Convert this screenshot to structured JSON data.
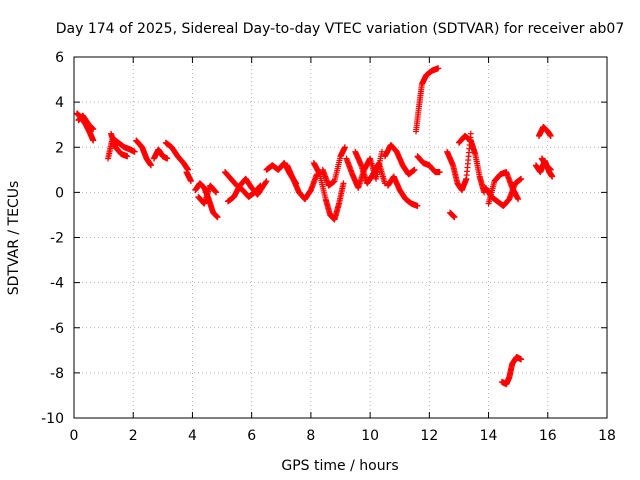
{
  "chart_data": {
    "type": "scatter",
    "title": "Day 174 of 2025, Sidereal Day-to-day VTEC variation (SDTVAR) for receiver ab07",
    "xlabel": "GPS time / hours",
    "ylabel": "SDTVAR / TECUs",
    "xlim": [
      0,
      18
    ],
    "ylim": [
      -10,
      6
    ],
    "xticks": [
      0,
      2,
      4,
      6,
      8,
      10,
      12,
      14,
      16,
      18
    ],
    "yticks": [
      -10,
      -8,
      -6,
      -4,
      -2,
      0,
      2,
      4,
      6
    ],
    "grid": true,
    "marker": "+",
    "color": "#ff0000",
    "series": [
      {
        "name": "ab07",
        "segments": [
          [
            [
              0.1,
              3.5
            ],
            [
              0.25,
              3.3
            ],
            [
              0.4,
              3.0
            ],
            [
              0.55,
              2.6
            ],
            [
              0.65,
              2.3
            ]
          ],
          [
            [
              0.15,
              3.2
            ],
            [
              0.3,
              3.4
            ],
            [
              0.5,
              3.0
            ],
            [
              0.65,
              2.8
            ]
          ],
          [
            [
              1.15,
              1.5
            ],
            [
              1.3,
              2.4
            ],
            [
              1.5,
              2.2
            ],
            [
              1.7,
              2.0
            ],
            [
              1.9,
              1.9
            ],
            [
              2.05,
              1.8
            ]
          ],
          [
            [
              1.25,
              2.6
            ],
            [
              1.4,
              2.0
            ],
            [
              1.6,
              1.7
            ],
            [
              1.8,
              1.6
            ]
          ],
          [
            [
              2.1,
              2.3
            ],
            [
              2.3,
              2.0
            ],
            [
              2.45,
              1.5
            ],
            [
              2.6,
              1.2
            ]
          ],
          [
            [
              2.7,
              1.5
            ],
            [
              2.85,
              1.9
            ],
            [
              3.0,
              1.6
            ],
            [
              3.15,
              1.5
            ]
          ],
          [
            [
              3.1,
              2.2
            ],
            [
              3.3,
              2.0
            ],
            [
              3.5,
              1.6
            ],
            [
              3.7,
              1.3
            ],
            [
              3.85,
              1.0
            ]
          ],
          [
            [
              3.8,
              0.9
            ],
            [
              3.95,
              0.5
            ]
          ],
          [
            [
              4.1,
              0.1
            ],
            [
              4.25,
              0.4
            ],
            [
              4.4,
              0.2
            ],
            [
              4.55,
              -0.3
            ],
            [
              4.7,
              -0.9
            ],
            [
              4.85,
              -1.1
            ]
          ],
          [
            [
              4.2,
              -0.2
            ],
            [
              4.4,
              -0.5
            ],
            [
              4.6,
              0.3
            ],
            [
              4.8,
              0.0
            ]
          ],
          [
            [
              5.1,
              0.9
            ],
            [
              5.3,
              0.6
            ],
            [
              5.5,
              0.3
            ],
            [
              5.7,
              0.1
            ],
            [
              5.9,
              -0.2
            ],
            [
              6.1,
              0.0
            ],
            [
              6.3,
              0.3
            ]
          ],
          [
            [
              5.2,
              -0.4
            ],
            [
              5.4,
              -0.2
            ],
            [
              5.6,
              0.3
            ],
            [
              5.8,
              0.6
            ],
            [
              6.0,
              0.2
            ],
            [
              6.2,
              -0.1
            ],
            [
              6.5,
              0.5
            ]
          ],
          [
            [
              6.5,
              1.0
            ],
            [
              6.7,
              1.2
            ],
            [
              6.9,
              1.0
            ],
            [
              7.1,
              1.3
            ],
            [
              7.3,
              0.8
            ],
            [
              7.5,
              0.4
            ]
          ],
          [
            [
              7.2,
              1.2
            ],
            [
              7.4,
              0.6
            ],
            [
              7.6,
              0.0
            ],
            [
              7.8,
              -0.3
            ],
            [
              8.0,
              0.1
            ],
            [
              8.2,
              0.8
            ]
          ],
          [
            [
              8.1,
              1.3
            ],
            [
              8.3,
              0.8
            ],
            [
              8.5,
              -0.3
            ],
            [
              8.65,
              -1.0
            ],
            [
              8.8,
              -1.2
            ],
            [
              8.95,
              -0.5
            ],
            [
              9.1,
              0.4
            ]
          ],
          [
            [
              8.4,
              1.0
            ],
            [
              8.6,
              0.3
            ],
            [
              8.8,
              0.5
            ],
            [
              9.0,
              1.6
            ],
            [
              9.15,
              2.0
            ]
          ],
          [
            [
              9.2,
              1.5
            ],
            [
              9.4,
              0.8
            ],
            [
              9.6,
              0.2
            ],
            [
              9.8,
              1.0
            ],
            [
              10.0,
              1.5
            ],
            [
              10.2,
              0.6
            ],
            [
              10.4,
              1.8
            ]
          ],
          [
            [
              9.5,
              1.8
            ],
            [
              9.7,
              1.2
            ],
            [
              9.9,
              0.4
            ],
            [
              10.1,
              0.8
            ],
            [
              10.3,
              1.3
            ],
            [
              10.5,
              0.4
            ]
          ],
          [
            [
              10.5,
              1.6
            ],
            [
              10.7,
              2.1
            ],
            [
              10.9,
              1.8
            ],
            [
              11.1,
              1.2
            ],
            [
              11.3,
              0.8
            ],
            [
              11.5,
              1.0
            ]
          ],
          [
            [
              10.6,
              0.3
            ],
            [
              10.8,
              0.7
            ],
            [
              11.0,
              0.1
            ],
            [
              11.2,
              -0.3
            ],
            [
              11.4,
              -0.5
            ],
            [
              11.6,
              -0.6
            ]
          ],
          [
            [
              11.6,
              1.6
            ],
            [
              11.8,
              1.3
            ],
            [
              12.0,
              1.2
            ],
            [
              12.2,
              0.9
            ],
            [
              12.35,
              0.9
            ]
          ],
          [
            [
              11.55,
              2.7
            ],
            [
              11.65,
              3.8
            ],
            [
              11.75,
              4.8
            ],
            [
              11.9,
              5.2
            ],
            [
              12.1,
              5.4
            ],
            [
              12.3,
              5.5
            ]
          ],
          [
            [
              12.6,
              1.8
            ],
            [
              12.8,
              1.2
            ],
            [
              12.95,
              0.4
            ],
            [
              13.1,
              0.1
            ],
            [
              13.25,
              0.6
            ],
            [
              13.4,
              2.6
            ]
          ],
          [
            [
              13.0,
              2.2
            ],
            [
              13.2,
              2.5
            ],
            [
              13.4,
              2.3
            ],
            [
              13.55,
              1.7
            ],
            [
              13.7,
              0.7
            ],
            [
              13.85,
              0.0
            ]
          ],
          [
            [
              12.7,
              -0.9
            ],
            [
              12.85,
              -1.1
            ]
          ],
          [
            [
              13.9,
              0.2
            ],
            [
              14.1,
              -0.2
            ],
            [
              14.3,
              -0.4
            ],
            [
              14.5,
              -0.6
            ],
            [
              14.7,
              -0.3
            ],
            [
              14.9,
              0.4
            ],
            [
              15.1,
              0.6
            ]
          ],
          [
            [
              14.0,
              -0.5
            ],
            [
              14.2,
              0.5
            ],
            [
              14.4,
              0.8
            ],
            [
              14.6,
              0.9
            ],
            [
              14.8,
              0.2
            ],
            [
              15.0,
              -0.3
            ]
          ],
          [
            [
              14.45,
              -8.4
            ],
            [
              14.6,
              -8.5
            ],
            [
              14.7,
              -8.2
            ],
            [
              14.8,
              -7.6
            ],
            [
              14.95,
              -7.3
            ],
            [
              15.1,
              -7.4
            ]
          ],
          [
            [
              15.6,
              1.2
            ],
            [
              15.75,
              0.9
            ],
            [
              15.9,
              1.4
            ],
            [
              16.05,
              0.9
            ],
            [
              16.15,
              0.7
            ]
          ],
          [
            [
              15.7,
              2.5
            ],
            [
              15.85,
              2.9
            ],
            [
              16.0,
              2.7
            ],
            [
              16.1,
              2.5
            ]
          ],
          [
            [
              15.8,
              1.5
            ],
            [
              15.95,
              1.2
            ],
            [
              16.1,
              1.0
            ]
          ]
        ]
      }
    ]
  }
}
